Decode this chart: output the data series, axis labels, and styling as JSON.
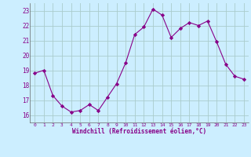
{
  "x": [
    0,
    1,
    2,
    3,
    4,
    5,
    6,
    7,
    8,
    9,
    10,
    11,
    12,
    13,
    14,
    15,
    16,
    17,
    18,
    19,
    20,
    21,
    22,
    23
  ],
  "y": [
    18.8,
    19.0,
    17.3,
    16.6,
    16.2,
    16.3,
    16.7,
    16.3,
    17.2,
    18.1,
    19.5,
    21.4,
    21.9,
    23.1,
    22.7,
    21.2,
    21.8,
    22.2,
    22.0,
    22.3,
    20.9,
    19.4,
    18.6,
    18.4
  ],
  "line_color": "#880088",
  "marker": "D",
  "marker_size": 2.2,
  "bg_color": "#cceeff",
  "grid_color": "#aacccc",
  "xlabel": "Windchill (Refroidissement éolien,°C)",
  "xlabel_color": "#880088",
  "tick_color": "#880088",
  "ylim": [
    15.5,
    23.5
  ],
  "xlim": [
    -0.5,
    23.5
  ],
  "yticks": [
    16,
    17,
    18,
    19,
    20,
    21,
    22,
    23
  ],
  "xticks": [
    0,
    1,
    2,
    3,
    4,
    5,
    6,
    7,
    8,
    9,
    10,
    11,
    12,
    13,
    14,
    15,
    16,
    17,
    18,
    19,
    20,
    21,
    22,
    23
  ]
}
